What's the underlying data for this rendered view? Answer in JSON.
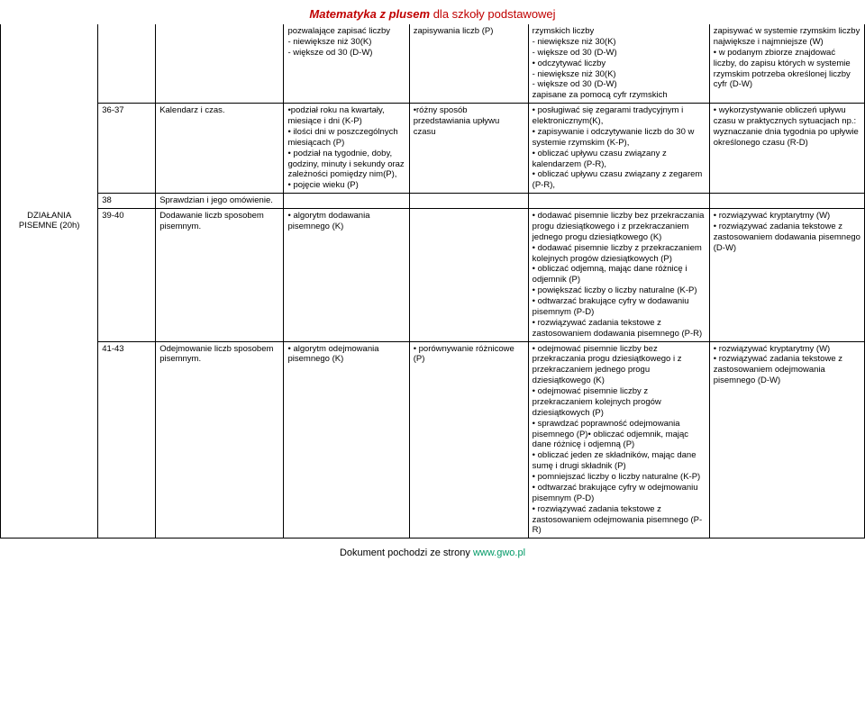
{
  "header": {
    "bold": "Matematyka z plusem",
    "rest": " dla szkoły podstawowej",
    "color": "#c00000"
  },
  "section": {
    "label": "DZIAŁANIA PISEMNE (20h)"
  },
  "footer": {
    "prefix": "Dokument pochodzi ze strony ",
    "link": "www.gwo.pl"
  },
  "rows": [
    {
      "lesson": "",
      "topic": "",
      "c4": "pozwalające zapisać liczby\n- niewiększe niż 30(K)\n- większe od 30 (D-W)",
      "c5": "zapisywania liczb (P)",
      "c6": "rzymskich liczby\n- niewiększe niż 30(K)\n- większe od 30 (D-W)\n• odczytywać liczby\n- niewiększe niż 30(K)\n- większe od 30 (D-W)\nzapisane za pomocą cyfr rzymskich",
      "c7": "zapisywać w systemie rzymskim liczby największe i najmniejsze (W)\n• w podanym zbiorze znajdować liczby, do zapisu których w systemie rzymskim potrzeba określonej liczby cyfr (D-W)"
    },
    {
      "lesson": "36-37",
      "topic": "Kalendarz i czas.",
      "c4": "•podział roku na kwartały, miesiące i dni (K-P)\n• ilości dni w poszczególnych miesiącach (P)\n• podział na tygodnie, doby, godziny, minuty i sekundy oraz zależności pomiędzy nim(P),\n• pojęcie wieku (P)",
      "c5": "•różny sposób przedstawiania upływu czasu",
      "c6": "• posługiwać się zegarami tradycyjnym i elektronicznym(K),\n• zapisywanie i odczytywanie liczb do 30 w systemie rzymskim (K-P),\n• obliczać upływu czasu związany z kalendarzem (P-R),\n• obliczać upływu czasu związany z zegarem (P-R),",
      "c7": "• wykorzystywanie obliczeń upływu czasu  w praktycznych sytuacjach np.: wyznaczanie dnia tygodnia po upływie określonego czasu (R-D)"
    },
    {
      "lesson": "38",
      "topic": "Sprawdzian i jego omówienie.",
      "c4": "",
      "c5": "",
      "c6": "",
      "c7": ""
    },
    {
      "lesson": "39-40",
      "topic": "Dodawanie liczb sposobem pisemnym.",
      "c4": "• algorytm dodawania pisemnego (K)",
      "c5": "",
      "c6": "• dodawać pisemnie liczby bez przekraczania progu dziesiątkowego i z przekraczaniem jednego progu dziesiątkowego (K)\n• dodawać pisemnie liczby z przekraczaniem kolejnych progów dziesiątkowych (P)\n• obliczać odjemną, mając dane różnicę i odjemnik (P)\n• powiększać liczby o liczby naturalne (K-P)\n• odtwarzać brakujące cyfry w dodawaniu pisemnym (P-D)\n• rozwiązywać zadania tekstowe z zastosowaniem dodawania pisemnego (P-R)",
      "c7": "• rozwiązywać kryptarytmy (W)\n• rozwiązywać zadania tekstowe z zastosowaniem dodawania pisemnego (D-W)"
    },
    {
      "lesson": "41-43",
      "topic": "Odejmowanie liczb sposobem pisemnym.",
      "c4": "• algorytm odejmowania pisemnego (K)",
      "c5": "• porównywanie różnicowe (P)",
      "c6": "• odejmować pisemnie liczby bez przekraczania progu dziesiątkowego i z przekraczaniem jednego progu dziesiątkowego (K)\n• odejmować pisemnie liczby z przekraczaniem kolejnych progów dziesiątkowych (P)\n• sprawdzać poprawność odejmowania pisemnego (P)•   obliczać odjemnik, mając dane różnicę i odjemną (P)\n• obliczać jeden ze składników, mając dane sumę i drugi składnik (P)\n• pomniejszać liczby o liczby naturalne (K-P)\n• odtwarzać brakujące cyfry w odejmowaniu pisemnym (P-D)\n• rozwiązywać zadania tekstowe z zastosowaniem odejmowania pisemnego (P-R)",
      "c7": "• rozwiązywać kryptarytmy (W)\n• rozwiązywać zadania tekstowe z zastosowaniem odejmowania pisemnego (D-W)"
    }
  ]
}
